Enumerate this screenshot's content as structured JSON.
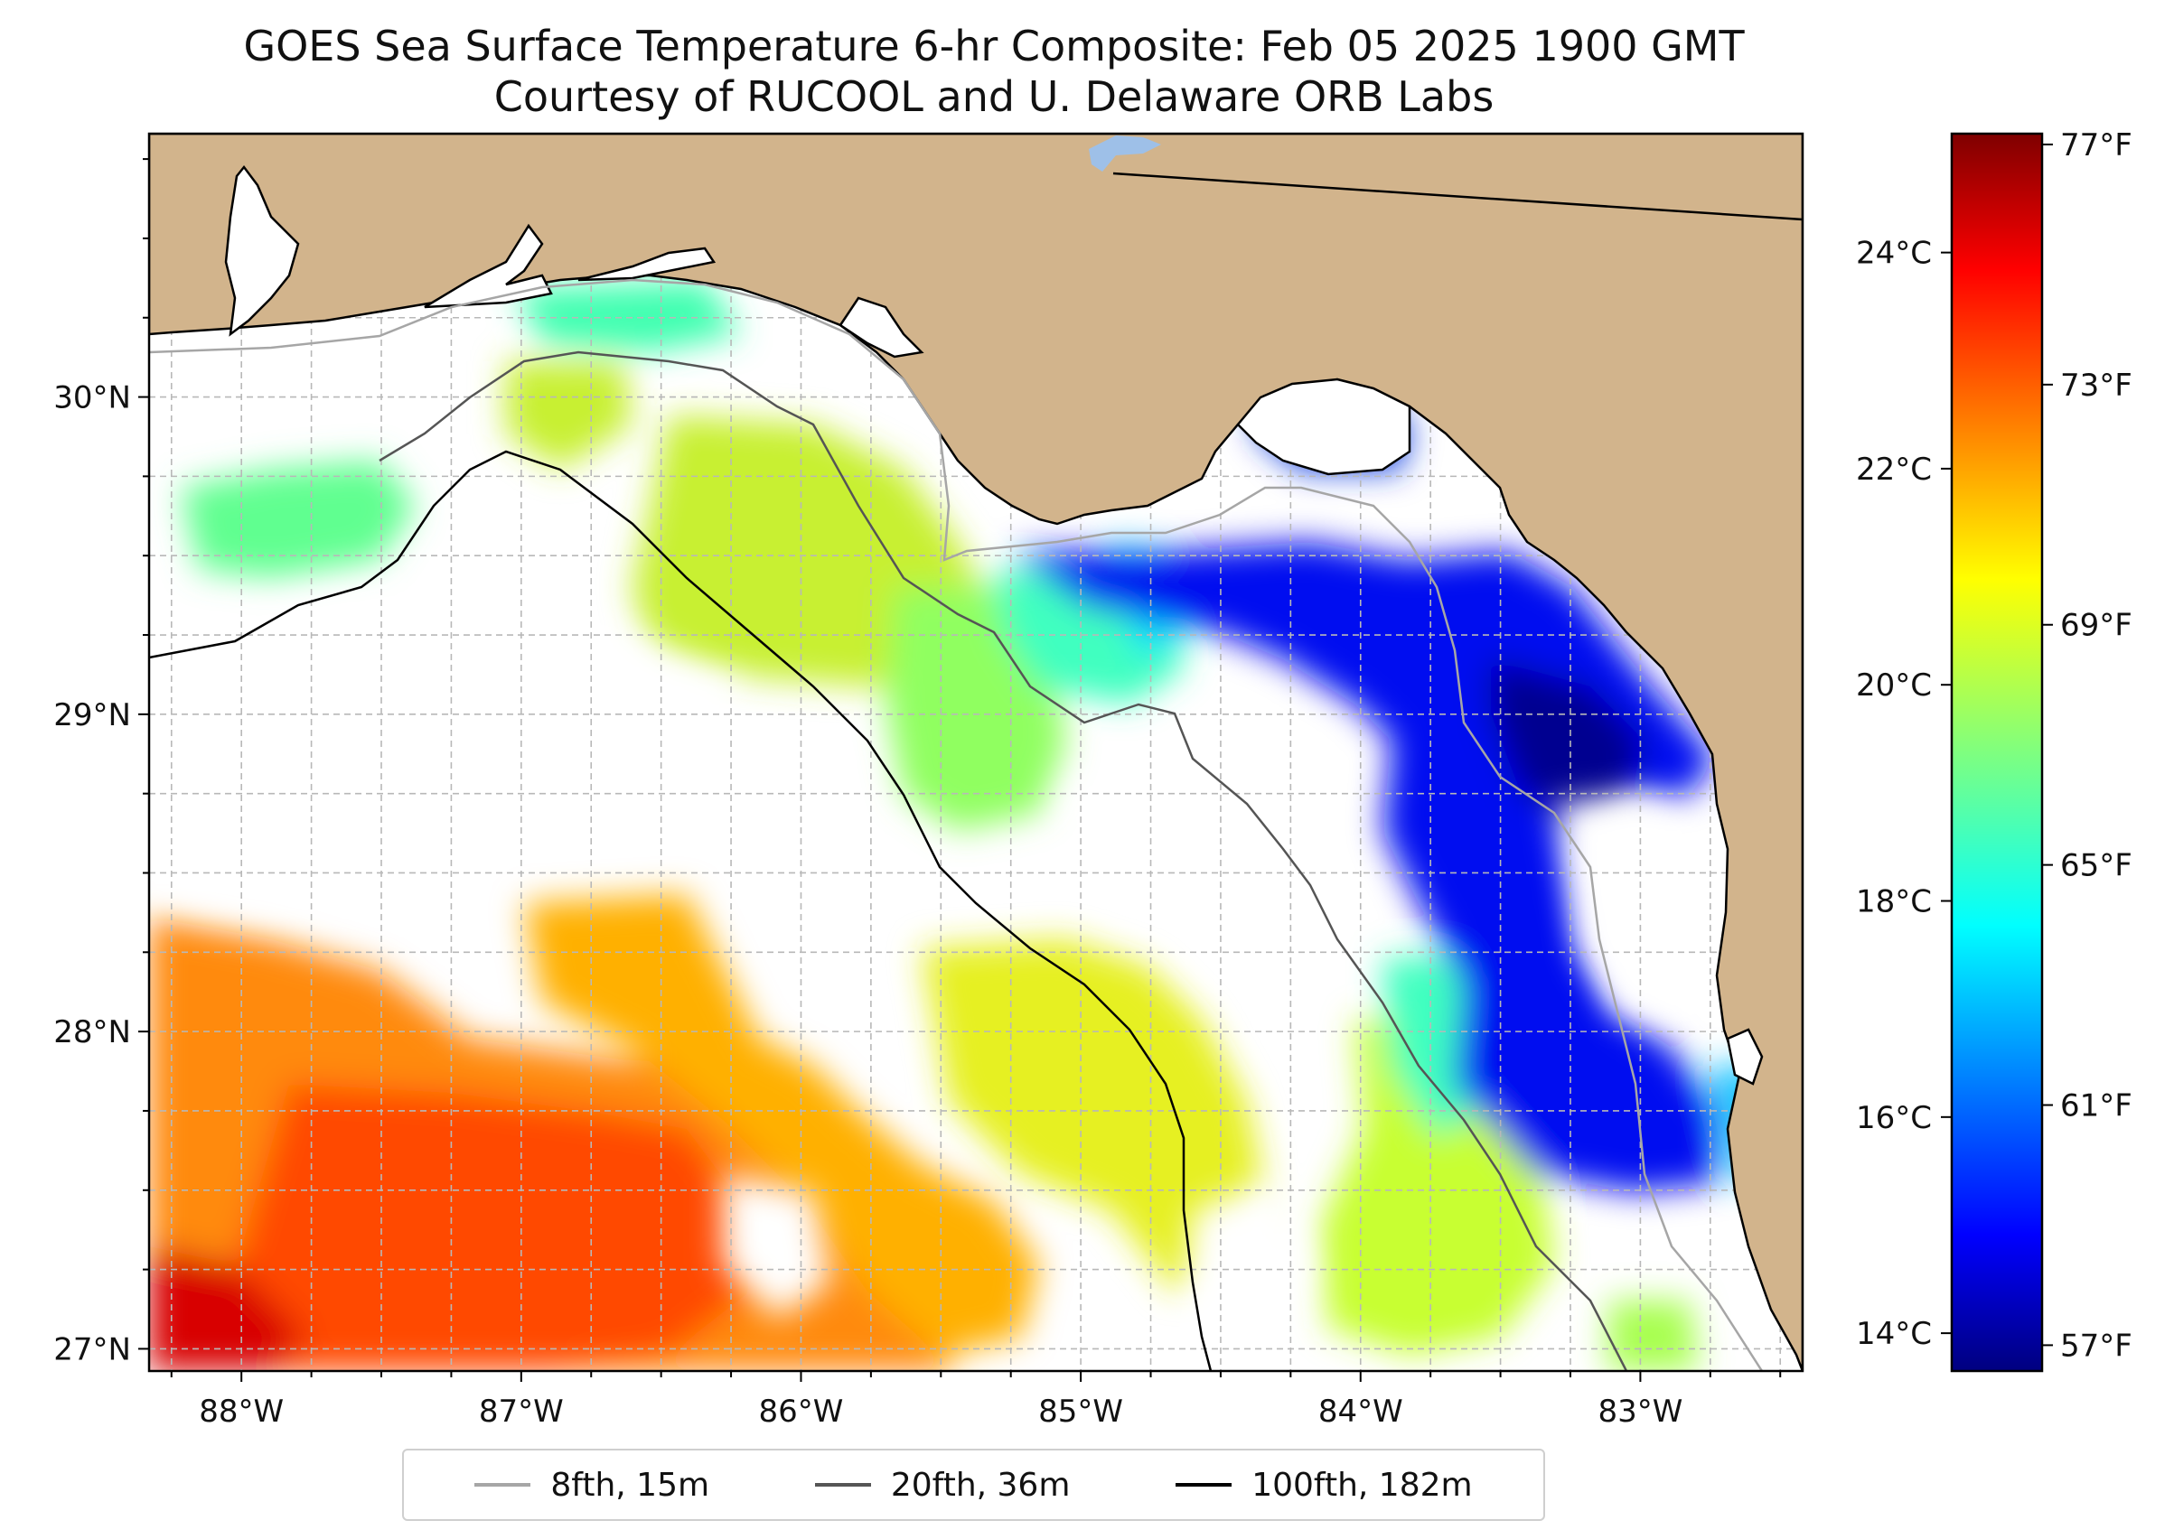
{
  "title": {
    "line1": "GOES Sea Surface Temperature 6-hr Composite: Feb 05 2025 1900 GMT",
    "line2": "Courtesy of RUCOOL and U. Delaware ORB Labs"
  },
  "map": {
    "lon_range": [
      -88.33,
      -82.42
    ],
    "lat_range": [
      26.93,
      30.83
    ],
    "lon_ticks": [
      {
        "value": -88,
        "label": "88°W"
      },
      {
        "value": -87,
        "label": "87°W"
      },
      {
        "value": -86,
        "label": "86°W"
      },
      {
        "value": -85,
        "label": "85°W"
      },
      {
        "value": -84,
        "label": "84°W"
      },
      {
        "value": -83,
        "label": "83°W"
      }
    ],
    "lat_ticks": [
      {
        "value": 30,
        "label": "30°N"
      },
      {
        "value": 29,
        "label": "29°N"
      },
      {
        "value": 28,
        "label": "28°N"
      },
      {
        "value": 27,
        "label": "27°N"
      }
    ],
    "colors": {
      "land": "#d2b48c",
      "ocean_nodata": "#ffffff",
      "coast": "#000000",
      "lake": "#9ec0e8"
    }
  },
  "colorbar": {
    "colormap": "jet",
    "range_c": [
      13.65,
      25.1
    ],
    "celsius_ticks": [
      {
        "value": 14,
        "label": "14°C"
      },
      {
        "value": 16,
        "label": "16°C"
      },
      {
        "value": 18,
        "label": "18°C"
      },
      {
        "value": 20,
        "label": "20°C"
      },
      {
        "value": 22,
        "label": "22°C"
      },
      {
        "value": 24,
        "label": "24°C"
      }
    ],
    "fahrenheit_ticks": [
      {
        "value": 57,
        "label": "57°F"
      },
      {
        "value": 61,
        "label": "61°F"
      },
      {
        "value": 65,
        "label": "65°F"
      },
      {
        "value": 69,
        "label": "69°F"
      },
      {
        "value": 73,
        "label": "73°F"
      },
      {
        "value": 77,
        "label": "77°F"
      }
    ]
  },
  "legend": [
    {
      "label": "8fth, 15m",
      "color": "#a6a6a6"
    },
    {
      "label": "20fth, 36m",
      "color": "#555555"
    },
    {
      "label": "100fth, 182m",
      "color": "#000000"
    }
  ]
}
